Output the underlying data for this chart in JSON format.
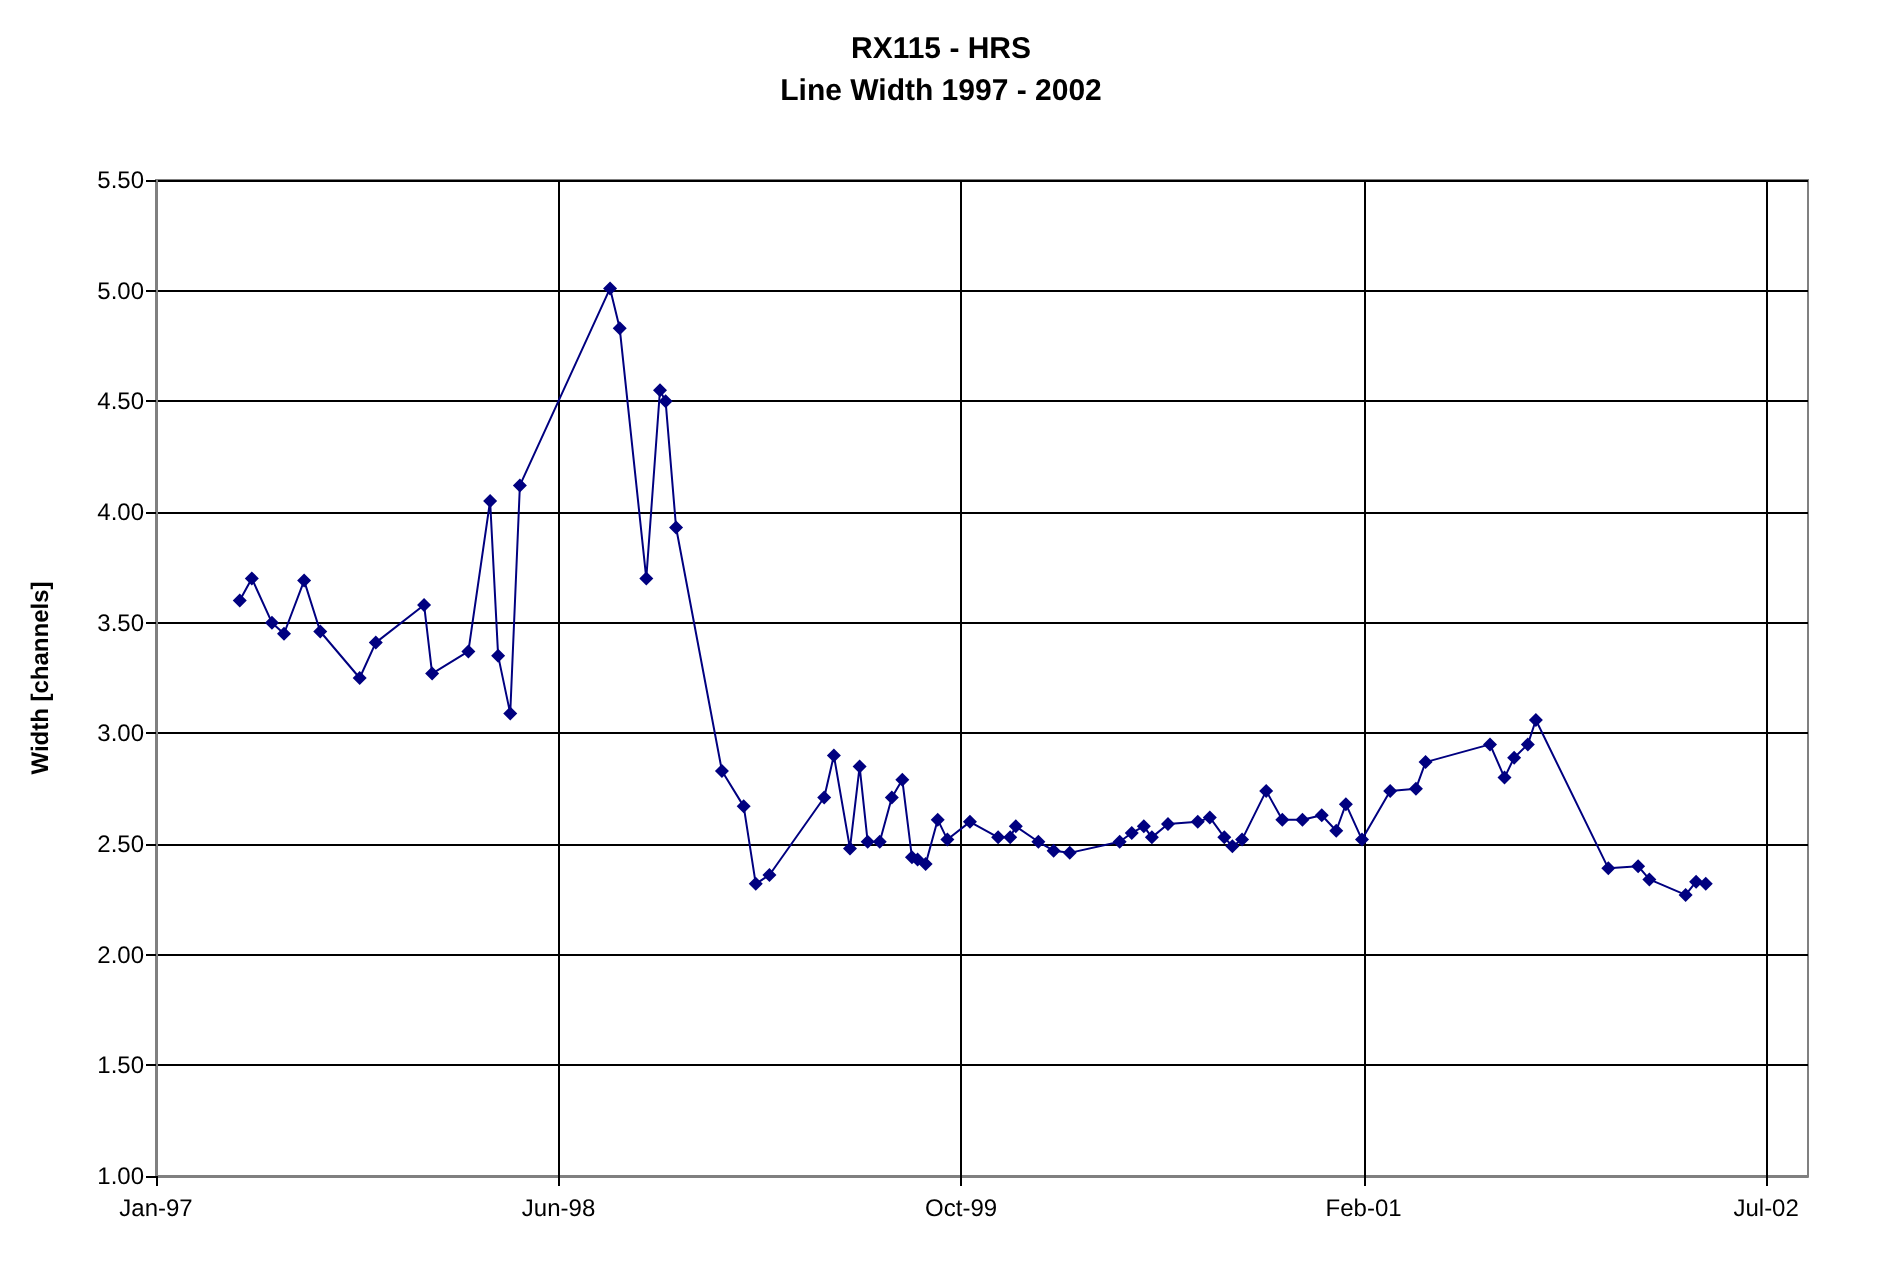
{
  "chart_data": {
    "type": "line",
    "title": "RX115 - HRS",
    "subtitle": "Line Width 1997 - 2002",
    "ylabel": "Width [channels]",
    "x": [
      "1997-05-02",
      "1997-05-17",
      "1997-06-11",
      "1997-06-26",
      "1997-07-21",
      "1997-08-10",
      "1997-09-28",
      "1997-10-18",
      "1997-12-17",
      "1997-12-27",
      "1998-02-10",
      "1998-03-09",
      "1998-03-19",
      "1998-04-03",
      "1998-04-15",
      "1998-08-05",
      "1998-08-17",
      "1998-09-19",
      "1998-10-06",
      "1998-10-13",
      "1998-10-26",
      "1998-12-22",
      "1999-01-18",
      "1999-02-02",
      "1999-02-19",
      "1999-04-28",
      "1999-05-10",
      "1999-05-30",
      "1999-06-11",
      "1999-06-21",
      "1999-07-06",
      "1999-07-21",
      "1999-08-03",
      "1999-08-15",
      "1999-08-22",
      "1999-09-01",
      "1999-09-16",
      "1999-09-28",
      "1999-10-26",
      "1999-11-30",
      "1999-12-15",
      "1999-12-22",
      "2000-01-19",
      "2000-02-07",
      "2000-02-27",
      "2000-04-29",
      "2000-05-14",
      "2000-05-29",
      "2000-06-08",
      "2000-06-28",
      "2000-08-04",
      "2000-08-19",
      "2000-09-06",
      "2000-09-16",
      "2000-09-28",
      "2000-10-28",
      "2000-11-17",
      "2000-12-12",
      "2001-01-05",
      "2001-01-23",
      "2001-02-04",
      "2001-02-24",
      "2001-03-31",
      "2001-05-02",
      "2001-05-14",
      "2001-08-02",
      "2001-08-20",
      "2001-09-01",
      "2001-09-18",
      "2001-09-28",
      "2001-12-27",
      "2002-02-02",
      "2002-02-16",
      "2002-04-02",
      "2002-04-15",
      "2002-04-27"
    ],
    "series": [
      {
        "color": "#000080",
        "values": [
          3.6,
          3.7,
          3.5,
          3.45,
          3.69,
          3.46,
          3.25,
          3.41,
          3.58,
          3.27,
          3.37,
          4.05,
          3.35,
          3.09,
          4.12,
          5.01,
          4.83,
          3.7,
          4.55,
          4.5,
          3.93,
          2.83,
          2.67,
          2.32,
          2.36,
          2.71,
          2.9,
          2.48,
          2.85,
          2.51,
          2.51,
          2.71,
          2.79,
          2.44,
          2.43,
          2.41,
          2.61,
          2.52,
          2.6,
          2.53,
          2.53,
          2.58,
          2.51,
          2.47,
          2.46,
          2.51,
          2.55,
          2.58,
          2.53,
          2.59,
          2.6,
          2.62,
          2.53,
          2.49,
          2.52,
          2.74,
          2.61,
          2.61,
          2.63,
          2.56,
          2.68,
          2.52,
          2.74,
          2.75,
          2.87,
          2.95,
          2.8,
          2.89,
          2.95,
          3.06,
          2.39,
          2.4,
          2.34,
          2.27,
          2.33,
          2.32
        ]
      }
    ],
    "xlim": [
      "1997-01-18",
      "2002-09-01"
    ],
    "xticks": [
      {
        "value": "1997-01-18",
        "label": "Jan-97"
      },
      {
        "value": "1998-06-02",
        "label": "Jun-98"
      },
      {
        "value": "1999-10-15",
        "label": "Oct-99"
      },
      {
        "value": "2001-02-26",
        "label": "Feb-01"
      },
      {
        "value": "2002-07-11",
        "label": "Jul-02"
      }
    ],
    "ylim": [
      1,
      5.5
    ],
    "yticks": [
      {
        "value": 1,
        "label": "1.00"
      },
      {
        "value": 1.5,
        "label": "1.50"
      },
      {
        "value": 2,
        "label": "2.00"
      },
      {
        "value": 2.5,
        "label": "2.50"
      },
      {
        "value": 3,
        "label": "3.00"
      },
      {
        "value": 3.5,
        "label": "3.50"
      },
      {
        "value": 4,
        "label": "4.00"
      },
      {
        "value": 4.5,
        "label": "4.50"
      },
      {
        "value": 5,
        "label": "5.00"
      },
      {
        "value": 5.5,
        "label": "5.50"
      }
    ],
    "grid": true,
    "marker": "diamond",
    "line_style": "solid"
  }
}
